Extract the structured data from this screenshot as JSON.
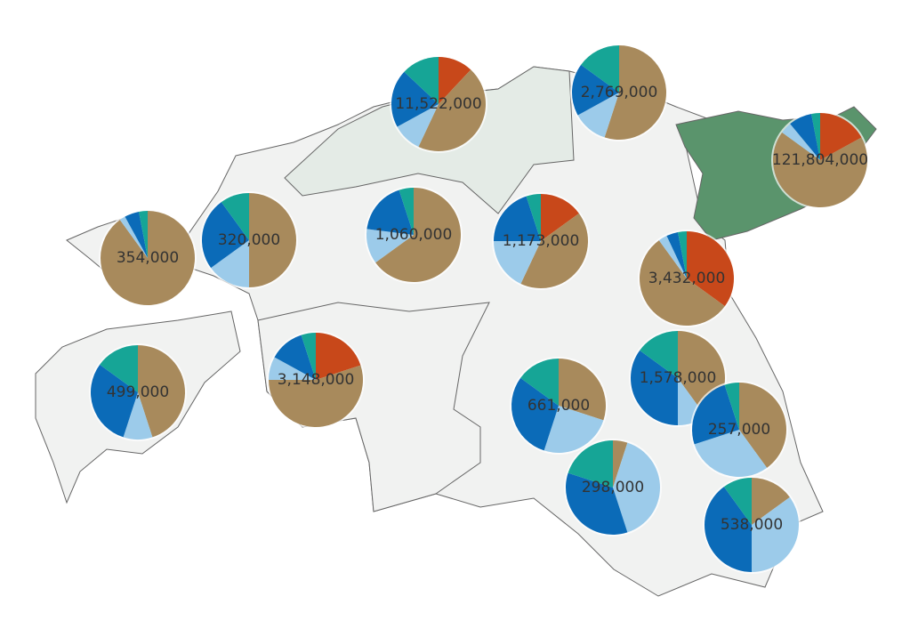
{
  "colors": [
    "#c8481a",
    "#a88a5c",
    "#9ccbea",
    "#0b6bb8",
    "#16a596"
  ],
  "pies": [
    {
      "label": "11,522,000",
      "slices": [
        12,
        45,
        10,
        20,
        13
      ]
    },
    {
      "label": "2,769,000",
      "slices": [
        0,
        55,
        12,
        18,
        15
      ]
    },
    {
      "label": "121,804,000",
      "slices": [
        17,
        68,
        4,
        8,
        3
      ]
    },
    {
      "label": "354,000",
      "slices": [
        0,
        90,
        2,
        5,
        3
      ]
    },
    {
      "label": "320,000",
      "slices": [
        0,
        50,
        15,
        25,
        10
      ]
    },
    {
      "label": "1,060,000",
      "slices": [
        0,
        65,
        12,
        18,
        5
      ]
    },
    {
      "label": "1,173,000",
      "slices": [
        15,
        42,
        18,
        20,
        5
      ]
    },
    {
      "label": "3,432,000",
      "slices": [
        35,
        55,
        3,
        4,
        3
      ]
    },
    {
      "label": "499,000",
      "slices": [
        0,
        45,
        10,
        30,
        15
      ]
    },
    {
      "label": "3,148,000",
      "slices": [
        20,
        55,
        8,
        12,
        5
      ]
    },
    {
      "label": "661,000",
      "slices": [
        0,
        30,
        25,
        30,
        15
      ]
    },
    {
      "label": "1,578,000",
      "slices": [
        0,
        40,
        10,
        35,
        15
      ]
    },
    {
      "label": "257,000",
      "slices": [
        0,
        40,
        30,
        25,
        5
      ]
    },
    {
      "label": "298,000",
      "slices": [
        0,
        5,
        40,
        35,
        20
      ]
    },
    {
      "label": "538,000",
      "slices": [
        0,
        15,
        35,
        40,
        10
      ]
    }
  ]
}
